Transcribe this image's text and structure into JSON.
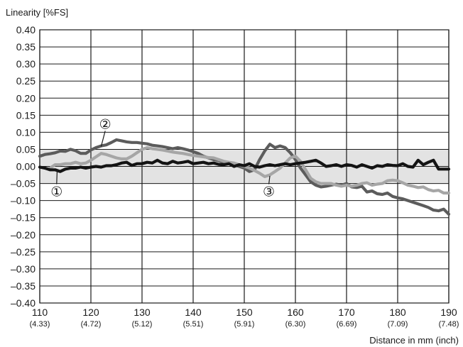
{
  "chart_data": {
    "type": "line",
    "title": "",
    "ylabel": "Linearity [%FS]",
    "xlabel": "Distance in mm (inch)",
    "xlim": [
      110,
      190
    ],
    "ylim": [
      -0.4,
      0.4
    ],
    "grid": true,
    "x_ticks": [
      {
        "value": 110,
        "label": "110",
        "sub": "(4.33)"
      },
      {
        "value": 120,
        "label": "120",
        "sub": "(4.72)"
      },
      {
        "value": 130,
        "label": "130",
        "sub": "(5.12)"
      },
      {
        "value": 140,
        "label": "140",
        "sub": "(5.51)"
      },
      {
        "value": 150,
        "label": "150",
        "sub": "(5.91)"
      },
      {
        "value": 160,
        "label": "160",
        "sub": "(6.30)"
      },
      {
        "value": 170,
        "label": "170",
        "sub": "(6.69)"
      },
      {
        "value": 180,
        "label": "180",
        "sub": "(7.09)"
      },
      {
        "value": 190,
        "label": "190",
        "sub": "(7.48)"
      }
    ],
    "y_ticks": [
      {
        "value": 0.4,
        "label": "0.40"
      },
      {
        "value": 0.35,
        "label": "0.35"
      },
      {
        "value": 0.3,
        "label": "0.30"
      },
      {
        "value": 0.25,
        "label": "0.25"
      },
      {
        "value": 0.2,
        "label": "0.20"
      },
      {
        "value": 0.15,
        "label": "0.15"
      },
      {
        "value": 0.1,
        "label": "0.10"
      },
      {
        "value": 0.05,
        "label": "0.05"
      },
      {
        "value": 0.0,
        "label": "0.00"
      },
      {
        "value": -0.05,
        "label": "–0.05"
      },
      {
        "value": -0.1,
        "label": "–0.10"
      },
      {
        "value": -0.15,
        "label": "–0.15"
      },
      {
        "value": -0.2,
        "label": "–0.20"
      },
      {
        "value": -0.25,
        "label": "–0.25"
      },
      {
        "value": -0.3,
        "label": "–0.30"
      },
      {
        "value": -0.35,
        "label": "–0.35"
      },
      {
        "value": -0.4,
        "label": "–0.40"
      }
    ],
    "tolerance_band": {
      "ymin": -0.05,
      "ymax": 0.05,
      "color": "#e3e3e3"
    },
    "series": [
      {
        "id": "series-2",
        "color": "#5c5c5c",
        "x": [
          110,
          111,
          112,
          113,
          114,
          115,
          116,
          117,
          118,
          119,
          120,
          121,
          122,
          123,
          124,
          125,
          126,
          127,
          128,
          129,
          130,
          131,
          132,
          133,
          134,
          135,
          136,
          137,
          138,
          139,
          140,
          141,
          142,
          143,
          144,
          145,
          146,
          147,
          148,
          149,
          150,
          151,
          152,
          153,
          154,
          155,
          156,
          157,
          158,
          159,
          160,
          161,
          162,
          163,
          164,
          165,
          166,
          167,
          168,
          169,
          170,
          171,
          172,
          173,
          174,
          175,
          176,
          177,
          178,
          179,
          180,
          181,
          182,
          183,
          184,
          185,
          186,
          187,
          188,
          189,
          190
        ],
        "y": [
          0.03,
          0.035,
          0.037,
          0.04,
          0.045,
          0.044,
          0.05,
          0.046,
          0.038,
          0.038,
          0.048,
          0.055,
          0.06,
          0.063,
          0.07,
          0.078,
          0.075,
          0.072,
          0.07,
          0.07,
          0.068,
          0.066,
          0.062,
          0.06,
          0.058,
          0.055,
          0.052,
          0.055,
          0.052,
          0.048,
          0.043,
          0.038,
          0.03,
          0.025,
          0.02,
          0.017,
          0.012,
          0.008,
          0.005,
          0.0,
          -0.005,
          -0.015,
          -0.01,
          0.02,
          0.045,
          0.065,
          0.055,
          0.06,
          0.055,
          0.04,
          0.02,
          -0.005,
          -0.025,
          -0.045,
          -0.055,
          -0.06,
          -0.058,
          -0.055,
          -0.052,
          -0.055,
          -0.05,
          -0.06,
          -0.062,
          -0.058,
          -0.075,
          -0.072,
          -0.08,
          -0.082,
          -0.078,
          -0.088,
          -0.092,
          -0.095,
          -0.1,
          -0.105,
          -0.11,
          -0.115,
          -0.12,
          -0.128,
          -0.13,
          -0.125,
          -0.14
        ]
      },
      {
        "id": "series-3",
        "color": "#a6a6a6",
        "x": [
          112,
          113,
          114,
          115,
          116,
          117,
          118,
          119,
          120,
          121,
          122,
          123,
          124,
          125,
          126,
          127,
          128,
          129,
          130,
          131,
          132,
          133,
          134,
          135,
          136,
          137,
          138,
          139,
          140,
          141,
          142,
          143,
          144,
          145,
          146,
          147,
          148,
          149,
          150,
          151,
          152,
          153,
          154,
          155,
          156,
          157,
          158,
          159,
          160,
          161,
          162,
          163,
          164,
          165,
          166,
          167,
          168,
          169,
          170,
          171,
          172,
          173,
          174,
          175,
          176,
          177,
          178,
          179,
          180,
          181,
          182,
          183,
          184,
          185,
          186,
          187,
          188,
          189,
          190
        ],
        "y": [
          -0.005,
          0.005,
          0.005,
          0.008,
          0.008,
          0.012,
          0.008,
          0.01,
          0.018,
          0.028,
          0.038,
          0.035,
          0.03,
          0.025,
          0.022,
          0.022,
          0.03,
          0.04,
          0.05,
          0.055,
          0.052,
          0.05,
          0.048,
          0.045,
          0.042,
          0.04,
          0.038,
          0.035,
          0.032,
          0.03,
          0.028,
          0.026,
          0.025,
          0.02,
          0.015,
          0.012,
          0.01,
          0.005,
          0.0,
          -0.005,
          -0.012,
          -0.02,
          -0.03,
          -0.025,
          -0.015,
          -0.005,
          0.01,
          0.025,
          0.03,
          0.015,
          -0.01,
          -0.035,
          -0.045,
          -0.05,
          -0.05,
          -0.05,
          -0.055,
          -0.058,
          -0.055,
          -0.058,
          -0.055,
          -0.05,
          -0.048,
          -0.055,
          -0.052,
          -0.05,
          -0.042,
          -0.04,
          -0.042,
          -0.048,
          -0.055,
          -0.058,
          -0.062,
          -0.06,
          -0.068,
          -0.072,
          -0.07,
          -0.078,
          -0.078
        ]
      },
      {
        "id": "series-1",
        "color": "#141414",
        "x": [
          110,
          111,
          112,
          113,
          114,
          115,
          116,
          117,
          118,
          119,
          120,
          121,
          122,
          123,
          124,
          125,
          126,
          127,
          128,
          129,
          130,
          131,
          132,
          133,
          134,
          135,
          136,
          137,
          138,
          139,
          140,
          141,
          142,
          143,
          144,
          145,
          146,
          147,
          148,
          149,
          150,
          151,
          152,
          153,
          154,
          155,
          156,
          157,
          158,
          159,
          160,
          161,
          162,
          163,
          164,
          165,
          166,
          167,
          168,
          169,
          170,
          171,
          172,
          173,
          174,
          175,
          176,
          177,
          178,
          179,
          180,
          181,
          182,
          183,
          184,
          185,
          186,
          187,
          188,
          189,
          190
        ],
        "y": [
          -0.002,
          -0.005,
          -0.01,
          -0.01,
          -0.015,
          -0.008,
          -0.005,
          -0.005,
          -0.002,
          -0.005,
          -0.002,
          0.0,
          -0.002,
          0.002,
          0.002,
          0.005,
          0.01,
          0.012,
          0.003,
          0.008,
          0.008,
          0.012,
          0.01,
          0.018,
          0.01,
          0.008,
          0.015,
          0.01,
          0.012,
          0.015,
          0.008,
          0.01,
          0.012,
          0.008,
          0.01,
          0.006,
          0.005,
          0.008,
          0.0,
          0.005,
          0.002,
          0.008,
          0.0,
          -0.002,
          0.002,
          0.005,
          0.002,
          0.005,
          0.008,
          0.005,
          0.008,
          0.01,
          0.012,
          0.015,
          0.018,
          0.01,
          0.0,
          0.002,
          0.005,
          0.0,
          0.005,
          0.003,
          -0.002,
          0.005,
          0.0,
          -0.005,
          0.002,
          0.0,
          0.005,
          0.003,
          0.002,
          0.008,
          0.0,
          -0.002,
          0.018,
          0.005,
          0.012,
          0.018,
          -0.008,
          -0.008,
          -0.008
        ]
      }
    ],
    "annotations": [
      {
        "id": "marker-1",
        "text": "①",
        "x": 113.3,
        "y": -0.073,
        "leader_to": [
          113.4,
          -0.012
        ]
      },
      {
        "id": "marker-2",
        "text": "②",
        "x": 122.8,
        "y": 0.125,
        "leader_to": [
          122.0,
          0.058
        ]
      },
      {
        "id": "marker-3",
        "text": "③",
        "x": 154.8,
        "y": -0.073,
        "leader_to": [
          155.0,
          -0.028
        ]
      }
    ]
  }
}
